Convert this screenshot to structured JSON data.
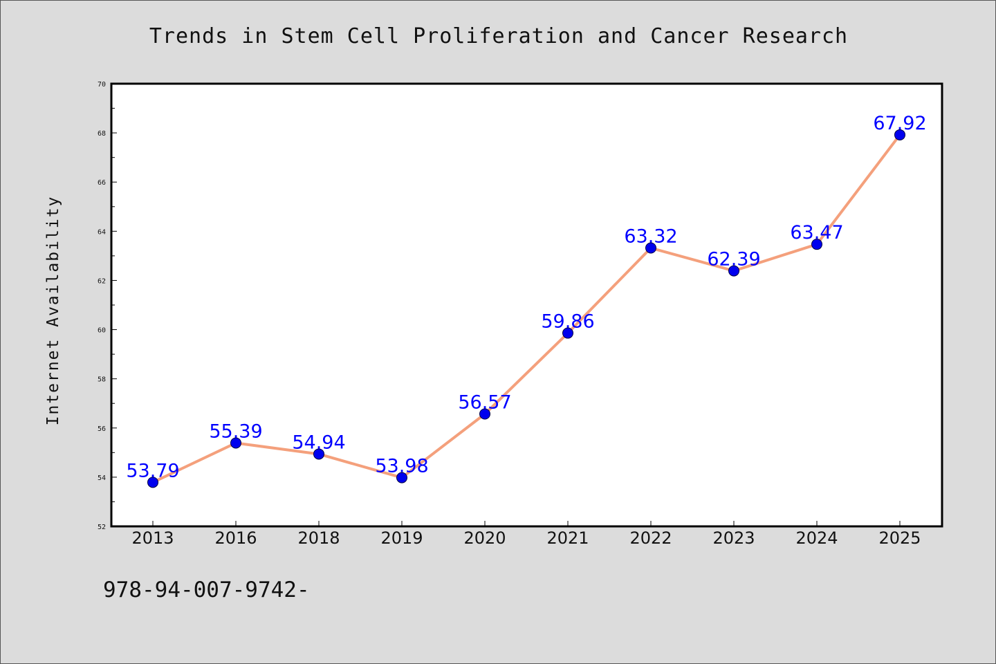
{
  "chart_data": {
    "type": "line",
    "title": "Trends in Stem Cell Proliferation and Cancer Research",
    "xlabel": "",
    "ylabel": "Internet Availability",
    "categories": [
      "2013",
      "2016",
      "2018",
      "2019",
      "2020",
      "2021",
      "2022",
      "2023",
      "2024",
      "2025"
    ],
    "series": [
      {
        "values": [
          53.79,
          55.39,
          54.94,
          53.98,
          56.57,
          59.86,
          63.32,
          62.39,
          63.47,
          67.92
        ],
        "value_labels": [
          "53.79",
          "55.39",
          "54.94",
          "53.98",
          "56.57",
          "59.86",
          "63.32",
          "62.39",
          "63.47",
          "67.92"
        ],
        "line_color": "#f4a07c",
        "marker_color": "#0000ee"
      }
    ],
    "ylim": [
      52,
      70
    ],
    "yticks": [
      "52",
      "54",
      "56",
      "58",
      "60",
      "62",
      "64",
      "66",
      "68",
      "70"
    ],
    "grid": false,
    "legend": "none",
    "label_color": "#0000ff"
  },
  "footer_text": "978-94-007-9742-"
}
